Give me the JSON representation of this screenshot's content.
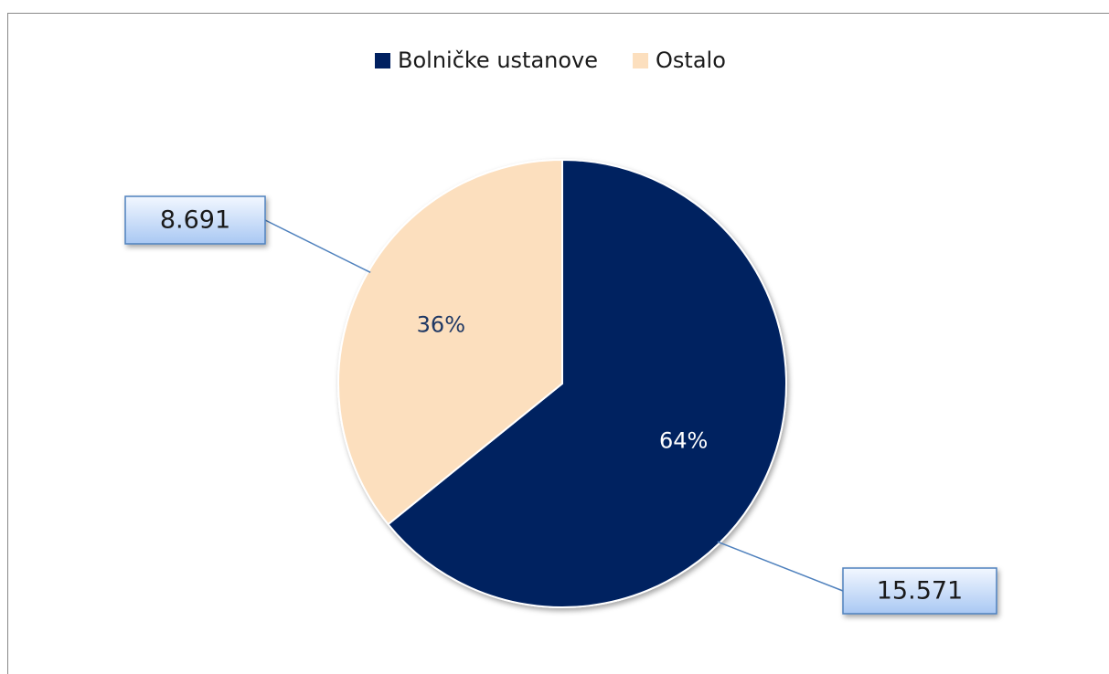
{
  "chart_data": {
    "type": "pie",
    "categories": [
      "Bolničke ustanove",
      "Ostalo"
    ],
    "values": [
      15571,
      8691
    ],
    "value_labels": [
      "15.571",
      "8.691"
    ],
    "percent_labels": [
      "64%",
      "36%"
    ],
    "colors": [
      "#002060",
      "#fcdfbe"
    ],
    "legend": "top"
  }
}
